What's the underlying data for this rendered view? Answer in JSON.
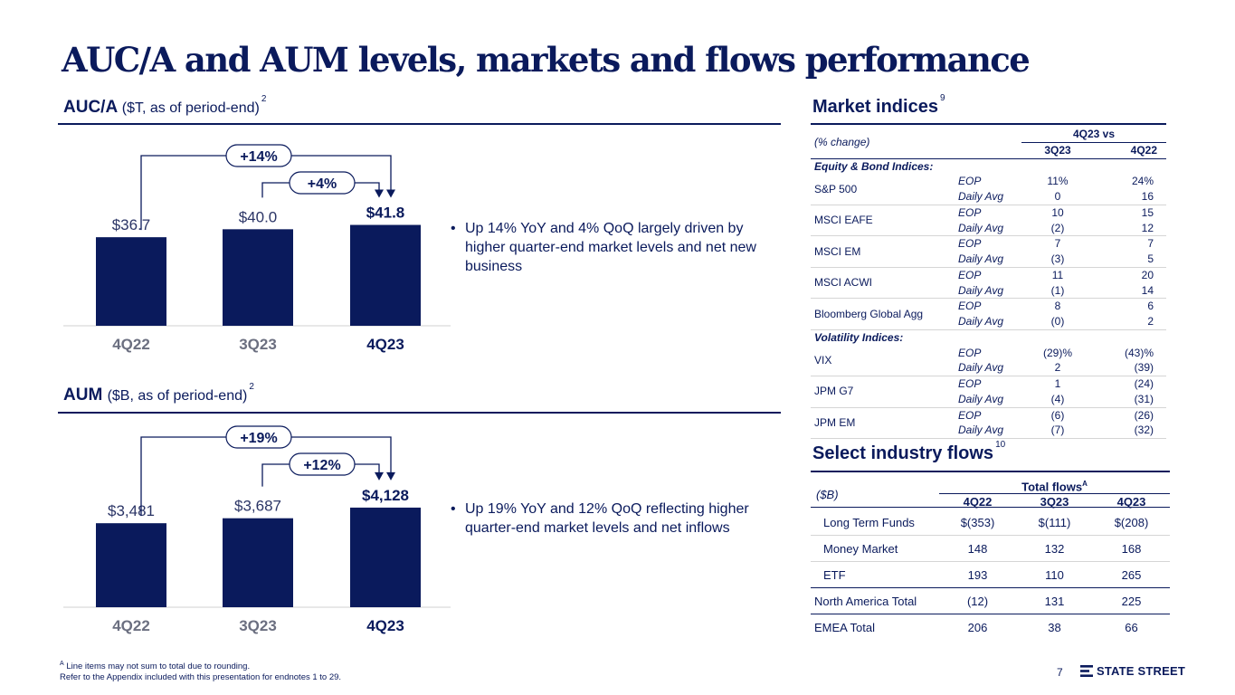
{
  "title": "AUC/A and AUM levels, markets and flows performance",
  "auca": {
    "heading": "AUC/A",
    "subheading": "($T, as of period-end)",
    "footnote_ref": "2",
    "bullet": "Up 14% YoY and 4% QoQ largely driven by higher quarter-end market levels and net new business"
  },
  "aum": {
    "heading": "AUM",
    "subheading": "($B, as of period-end)",
    "footnote_ref": "2",
    "bullet": "Up 19% YoY and 12% QoQ reflecting higher quarter-end market levels and net inflows"
  },
  "chart_data": [
    {
      "type": "bar",
      "title": "AUC/A ($T, as of period-end)",
      "categories": [
        "4Q22",
        "3Q23",
        "4Q23"
      ],
      "values": [
        36.7,
        40.0,
        41.8
      ],
      "value_labels": [
        "$36.7",
        "$40.0",
        "$41.8"
      ],
      "ylim": [
        0,
        48
      ],
      "annotations": [
        {
          "text": "+14%",
          "from": "4Q22",
          "to": "4Q23"
        },
        {
          "text": "+4%",
          "from": "3Q23",
          "to": "4Q23"
        }
      ],
      "highlight": "4Q23"
    },
    {
      "type": "bar",
      "title": "AUM ($B, as of period-end)",
      "categories": [
        "4Q22",
        "3Q23",
        "4Q23"
      ],
      "values": [
        3481,
        3687,
        4128
      ],
      "value_labels": [
        "$3,481",
        "$3,687",
        "$4,128"
      ],
      "ylim": [
        0,
        4800
      ],
      "annotations": [
        {
          "text": "+19%",
          "from": "4Q22",
          "to": "4Q23"
        },
        {
          "text": "+12%",
          "from": "3Q23",
          "to": "4Q23"
        }
      ],
      "highlight": "4Q23"
    }
  ],
  "market_indices": {
    "heading": "Market indices",
    "footnote_ref": "9",
    "pct_label": "(% change)",
    "group_header": "4Q23 vs",
    "col_headers": [
      "3Q23",
      "4Q22"
    ],
    "section_equity": "Equity & Bond Indices:",
    "section_vol": "Volatility Indices:",
    "equity": [
      {
        "name": "S&P 500",
        "rows": [
          {
            "m": "EOP",
            "a": "11%",
            "b": "24%"
          },
          {
            "m": "Daily Avg",
            "a": "0",
            "b": "16"
          }
        ]
      },
      {
        "name": "MSCI EAFE",
        "rows": [
          {
            "m": "EOP",
            "a": "10",
            "b": "15"
          },
          {
            "m": "Daily Avg",
            "a": "(2)",
            "b": "12"
          }
        ]
      },
      {
        "name": "MSCI EM",
        "rows": [
          {
            "m": "EOP",
            "a": "7",
            "b": "7"
          },
          {
            "m": "Daily Avg",
            "a": "(3)",
            "b": "5"
          }
        ]
      },
      {
        "name": "MSCI ACWI",
        "rows": [
          {
            "m": "EOP",
            "a": "11",
            "b": "20"
          },
          {
            "m": "Daily Avg",
            "a": "(1)",
            "b": "14"
          }
        ]
      },
      {
        "name": "Bloomberg Global Agg",
        "rows": [
          {
            "m": "EOP",
            "a": "8",
            "b": "6"
          },
          {
            "m": "Daily Avg",
            "a": "(0)",
            "b": "2"
          }
        ]
      }
    ],
    "volatility": [
      {
        "name": "VIX",
        "rows": [
          {
            "m": "EOP",
            "a": "(29)%",
            "b": "(43)%"
          },
          {
            "m": "Daily Avg",
            "a": "2",
            "b": "(39)"
          }
        ]
      },
      {
        "name": "JPM G7",
        "rows": [
          {
            "m": "EOP",
            "a": "1",
            "b": "(24)"
          },
          {
            "m": "Daily Avg",
            "a": "(4)",
            "b": "(31)"
          }
        ]
      },
      {
        "name": "JPM EM",
        "rows": [
          {
            "m": "EOP",
            "a": "(6)",
            "b": "(26)"
          },
          {
            "m": "Daily Avg",
            "a": "(7)",
            "b": "(32)"
          }
        ]
      }
    ]
  },
  "industry_flows": {
    "heading": "Select industry flows",
    "footnote_ref": "10",
    "unit_label": "($B)",
    "group_header": "Total flows",
    "group_header_sup": "A",
    "col_headers": [
      "4Q22",
      "3Q23",
      "4Q23"
    ],
    "rows": [
      {
        "name": "Long Term Funds",
        "values": [
          "$(353)",
          "$(111)",
          "$(208)"
        ]
      },
      {
        "name": "Money Market",
        "values": [
          "148",
          "132",
          "168"
        ]
      },
      {
        "name": "ETF",
        "values": [
          "193",
          "110",
          "265"
        ]
      },
      {
        "name": "North America Total",
        "values": [
          "(12)",
          "131",
          "225"
        ]
      },
      {
        "name": "EMEA Total",
        "values": [
          "206",
          "38",
          "66"
        ]
      }
    ]
  },
  "footnote": {
    "line1_sup": "A",
    "line1": "Line items may not sum to total due to rounding.",
    "line2": "Refer to the Appendix included with this presentation for endnotes 1 to 29."
  },
  "page_number": "7",
  "brand": "STATE STREET",
  "colors": {
    "navy": "#0a1a5c",
    "bar": "#0a1a5c",
    "label_gray": "#6b6f80",
    "connector": "#0a1a5c"
  }
}
